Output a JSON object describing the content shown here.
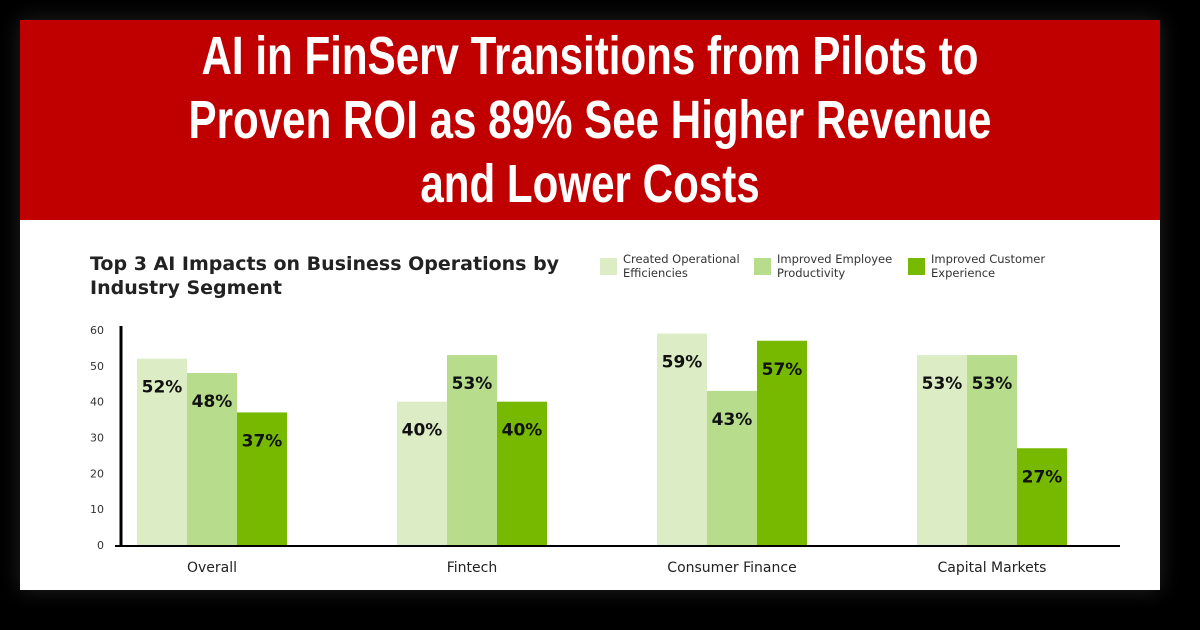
{
  "headline": "AI in FinServ Transitions from Pilots to Proven ROI as 89% See Higher Revenue and Lower Costs",
  "chart_data": {
    "type": "bar",
    "title": "Top 3 AI Impacts on Business Operations by Industry Segment",
    "categories": [
      "Overall",
      "Fintech",
      "Consumer Finance",
      "Capital Markets"
    ],
    "series": [
      {
        "name": "Created Operational Efficiencies",
        "color": "#dcedc6",
        "values": [
          52,
          40,
          59,
          53
        ]
      },
      {
        "name": "Improved Employee Productivity",
        "color": "#b6dc8c",
        "values": [
          48,
          53,
          43,
          53
        ]
      },
      {
        "name": "Improved Customer Experience",
        "color": "#76b900",
        "values": [
          37,
          40,
          57,
          27
        ]
      }
    ],
    "ylim": [
      0,
      60
    ],
    "yticks": [
      0,
      10,
      20,
      30,
      40,
      50,
      60
    ],
    "data_label_suffix": "%",
    "grid": false,
    "legend_position": "top-right"
  }
}
